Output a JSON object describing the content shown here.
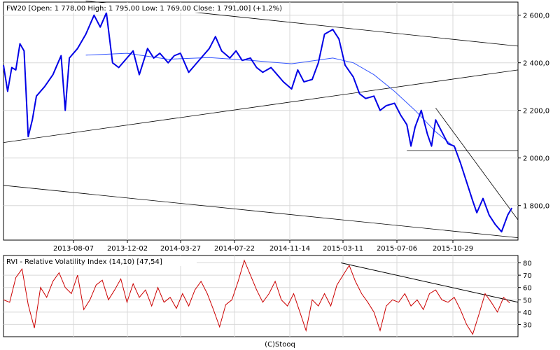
{
  "header": {
    "price": "FW20 [Open: 1 778,00  High: 1 795,00  Low: 1 769,00  Close: 1 791,00] (+1,2%)",
    "indicator": "RVI - Relative Volatility Index (14,10) [47,54]"
  },
  "footer": {
    "copyright": "(C)Stooq"
  },
  "colors": {
    "price": "#0000e6",
    "sma": "#3355ff",
    "rvi": "#cc0000",
    "trend": "#000000",
    "grid": "#d8d8d8"
  },
  "chart_data": [
    {
      "type": "line",
      "title": "",
      "series_label": "FW20",
      "x_ticks": [
        "2013-08-07",
        "2013-12-02",
        "2014-03-27",
        "2014-07-22",
        "2014-11-14",
        "2015-03-11",
        "2015-07-06",
        "2015-10-29"
      ],
      "y_ticks": [
        2600,
        2400,
        2200,
        2000,
        1800
      ],
      "y_tick_labels": [
        "2 600,0",
        "2 400,0",
        "2 200,0",
        "2 000,0",
        "1 800,0"
      ],
      "ylim": [
        1655,
        2655
      ],
      "grid": true,
      "price": [
        [
          0,
          2390
        ],
        [
          0.2,
          2280
        ],
        [
          0.4,
          2380
        ],
        [
          0.6,
          2370
        ],
        [
          0.8,
          2480
        ],
        [
          1,
          2450
        ],
        [
          1.2,
          2090
        ],
        [
          1.4,
          2160
        ],
        [
          1.6,
          2260
        ],
        [
          2,
          2300
        ],
        [
          2.4,
          2350
        ],
        [
          2.8,
          2430
        ],
        [
          3,
          2200
        ],
        [
          3.2,
          2420
        ],
        [
          3.6,
          2460
        ],
        [
          4,
          2520
        ],
        [
          4.4,
          2600
        ],
        [
          4.7,
          2550
        ],
        [
          5,
          2610
        ],
        [
          5.3,
          2400
        ],
        [
          5.6,
          2380
        ],
        [
          6,
          2420
        ],
        [
          6.3,
          2450
        ],
        [
          6.6,
          2350
        ],
        [
          7,
          2460
        ],
        [
          7.3,
          2420
        ],
        [
          7.6,
          2440
        ],
        [
          8,
          2400
        ],
        [
          8.3,
          2430
        ],
        [
          8.6,
          2440
        ],
        [
          9,
          2360
        ],
        [
          9.3,
          2390
        ],
        [
          9.6,
          2420
        ],
        [
          10,
          2460
        ],
        [
          10.3,
          2510
        ],
        [
          10.6,
          2450
        ],
        [
          11,
          2420
        ],
        [
          11.3,
          2450
        ],
        [
          11.6,
          2410
        ],
        [
          12,
          2420
        ],
        [
          12.3,
          2380
        ],
        [
          12.6,
          2360
        ],
        [
          13,
          2380
        ],
        [
          13.3,
          2350
        ],
        [
          13.6,
          2320
        ],
        [
          14,
          2290
        ],
        [
          14.3,
          2370
        ],
        [
          14.6,
          2320
        ],
        [
          15,
          2330
        ],
        [
          15.3,
          2400
        ],
        [
          15.6,
          2520
        ],
        [
          16,
          2540
        ],
        [
          16.3,
          2500
        ],
        [
          16.6,
          2390
        ],
        [
          17,
          2340
        ],
        [
          17.3,
          2270
        ],
        [
          17.6,
          2250
        ],
        [
          18,
          2260
        ],
        [
          18.3,
          2200
        ],
        [
          18.6,
          2220
        ],
        [
          19,
          2230
        ],
        [
          19.3,
          2180
        ],
        [
          19.6,
          2140
        ],
        [
          19.8,
          2050
        ],
        [
          20,
          2130
        ],
        [
          20.3,
          2200
        ],
        [
          20.6,
          2100
        ],
        [
          20.8,
          2050
        ],
        [
          21,
          2160
        ],
        [
          21.3,
          2110
        ],
        [
          21.6,
          2060
        ],
        [
          21.9,
          2050
        ],
        [
          22.2,
          1980
        ],
        [
          22.5,
          1900
        ],
        [
          22.8,
          1820
        ],
        [
          23,
          1770
        ],
        [
          23.3,
          1830
        ],
        [
          23.6,
          1760
        ],
        [
          23.9,
          1720
        ],
        [
          24.2,
          1690
        ],
        [
          24.5,
          1760
        ],
        [
          24.7,
          1790
        ]
      ],
      "sma": [
        [
          4,
          2432
        ],
        [
          6,
          2440
        ],
        [
          8,
          2415
        ],
        [
          10,
          2422
        ],
        [
          12,
          2410
        ],
        [
          14,
          2396
        ],
        [
          16,
          2420
        ],
        [
          17,
          2400
        ],
        [
          18,
          2350
        ],
        [
          19,
          2280
        ],
        [
          20,
          2200
        ],
        [
          21,
          2110
        ],
        [
          22,
          2040
        ]
      ],
      "trendlines": [
        [
          [
            0,
            2065
          ],
          [
            25,
            2370
          ]
        ],
        [
          [
            4,
            2660
          ],
          [
            25,
            2470
          ]
        ],
        [
          [
            0,
            1885
          ],
          [
            25,
            1665
          ]
        ],
        [
          [
            19.6,
            2030
          ],
          [
            25,
            2030
          ]
        ],
        [
          [
            21,
            2210
          ],
          [
            25,
            1740
          ]
        ]
      ]
    },
    {
      "type": "line",
      "title": "",
      "series_label": "RVI",
      "y_ticks": [
        80,
        70,
        60,
        50,
        40,
        30
      ],
      "ylim": [
        20,
        86
      ],
      "grid": true,
      "rvi": [
        [
          0,
          50
        ],
        [
          0.3,
          48
        ],
        [
          0.6,
          68
        ],
        [
          0.9,
          75
        ],
        [
          1.2,
          46
        ],
        [
          1.5,
          27
        ],
        [
          1.8,
          60
        ],
        [
          2.1,
          52
        ],
        [
          2.4,
          65
        ],
        [
          2.7,
          72
        ],
        [
          3,
          60
        ],
        [
          3.3,
          55
        ],
        [
          3.6,
          70
        ],
        [
          3.9,
          42
        ],
        [
          4.2,
          50
        ],
        [
          4.5,
          62
        ],
        [
          4.8,
          66
        ],
        [
          5.1,
          50
        ],
        [
          5.4,
          58
        ],
        [
          5.7,
          67
        ],
        [
          6,
          48
        ],
        [
          6.3,
          63
        ],
        [
          6.6,
          52
        ],
        [
          6.9,
          58
        ],
        [
          7.2,
          45
        ],
        [
          7.5,
          60
        ],
        [
          7.8,
          48
        ],
        [
          8.1,
          52
        ],
        [
          8.4,
          43
        ],
        [
          8.7,
          55
        ],
        [
          9,
          45
        ],
        [
          9.3,
          58
        ],
        [
          9.6,
          65
        ],
        [
          9.9,
          55
        ],
        [
          10.2,
          42
        ],
        [
          10.5,
          28
        ],
        [
          10.8,
          46
        ],
        [
          11.1,
          50
        ],
        [
          11.4,
          65
        ],
        [
          11.7,
          82
        ],
        [
          12,
          70
        ],
        [
          12.3,
          58
        ],
        [
          12.6,
          48
        ],
        [
          12.9,
          55
        ],
        [
          13.2,
          65
        ],
        [
          13.5,
          50
        ],
        [
          13.8,
          45
        ],
        [
          14.1,
          55
        ],
        [
          14.4,
          40
        ],
        [
          14.7,
          25
        ],
        [
          15,
          50
        ],
        [
          15.3,
          45
        ],
        [
          15.6,
          55
        ],
        [
          15.9,
          45
        ],
        [
          16.2,
          62
        ],
        [
          16.5,
          70
        ],
        [
          16.8,
          78
        ],
        [
          17.1,
          65
        ],
        [
          17.4,
          55
        ],
        [
          17.7,
          48
        ],
        [
          18,
          40
        ],
        [
          18.3,
          25
        ],
        [
          18.6,
          45
        ],
        [
          18.9,
          50
        ],
        [
          19.2,
          48
        ],
        [
          19.5,
          55
        ],
        [
          19.8,
          45
        ],
        [
          20.1,
          50
        ],
        [
          20.4,
          42
        ],
        [
          20.7,
          55
        ],
        [
          21,
          58
        ],
        [
          21.3,
          50
        ],
        [
          21.6,
          48
        ],
        [
          21.9,
          52
        ],
        [
          22.2,
          42
        ],
        [
          22.5,
          30
        ],
        [
          22.8,
          22
        ],
        [
          23.1,
          38
        ],
        [
          23.4,
          55
        ],
        [
          23.7,
          48
        ],
        [
          24,
          40
        ],
        [
          24.3,
          52
        ],
        [
          24.6,
          47.5
        ]
      ],
      "trendline": [
        [
          16.4,
          80
        ],
        [
          25,
          48
        ]
      ]
    }
  ]
}
